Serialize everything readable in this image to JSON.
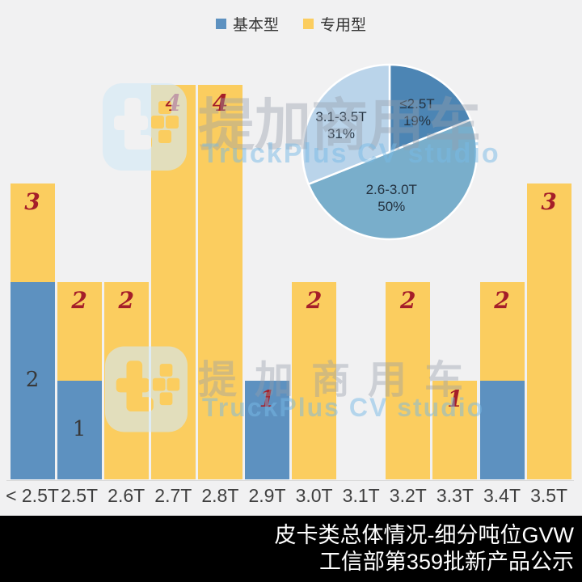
{
  "legend": {
    "items": [
      {
        "label": "基本型",
        "color": "#5D91C0"
      },
      {
        "label": "专用型",
        "color": "#FBCD5F"
      }
    ]
  },
  "chart_data": [
    {
      "type": "bar",
      "title": "",
      "xlabel": "",
      "ylabel": "",
      "ylim": [
        0,
        4
      ],
      "grid": false,
      "render": "overlapped-bars-from-baseline",
      "categories": [
        "< 2.5T",
        "2.5T",
        "2.6T",
        "2.7T",
        "2.8T",
        "2.9T",
        "3.0T",
        "3.1T",
        "3.2T",
        "3.3T",
        "3.4T",
        "3.5T"
      ],
      "series": [
        {
          "name": "专用型",
          "color": "#FBCD5F",
          "values": [
            3,
            2,
            2,
            4,
            4,
            1,
            2,
            0,
            2,
            1,
            2,
            3
          ],
          "data_labels": [
            "3",
            "2",
            "2",
            "4",
            "4",
            "1",
            "2",
            "",
            "2",
            "1",
            "2",
            "3"
          ],
          "label_color": "#A51E29"
        },
        {
          "name": "基本型",
          "color": "#5D91C0",
          "values": [
            2,
            1,
            0,
            0,
            0,
            1,
            0,
            0,
            0,
            0,
            1,
            0
          ],
          "data_labels": [
            "2",
            "1",
            "",
            "",
            "",
            "",
            "",
            "",
            "",
            "",
            "",
            ""
          ],
          "label_color": "#383838"
        }
      ]
    },
    {
      "type": "pie",
      "start": "top",
      "direction": "clockwise",
      "legend_position": "none",
      "labels_inside": true,
      "slices": [
        {
          "label": "≤2.5T",
          "pct": 19,
          "color": "#4C85B4"
        },
        {
          "label": "2.6-3.0T",
          "pct": 50,
          "color": "#79AECB"
        },
        {
          "label": "3.1-3.5T",
          "pct": 31,
          "color": "#BAD4EA"
        }
      ]
    }
  ],
  "watermark": {
    "brand": "提加商用车",
    "studio": "TruckPlus CV studio"
  },
  "footer": {
    "line1": "皮卡类总体情况-细分吨位GVW",
    "line2": "工信部第359批新产品公示"
  },
  "colors": {
    "background": "#F1F1F2",
    "footer_bg": "#000000",
    "footer_text": "#FFFFFF",
    "axis_label": "#3F3F3F",
    "special_label": "#A51E29",
    "basic_label": "#383838",
    "bar_gap": "#FFFFFF"
  }
}
